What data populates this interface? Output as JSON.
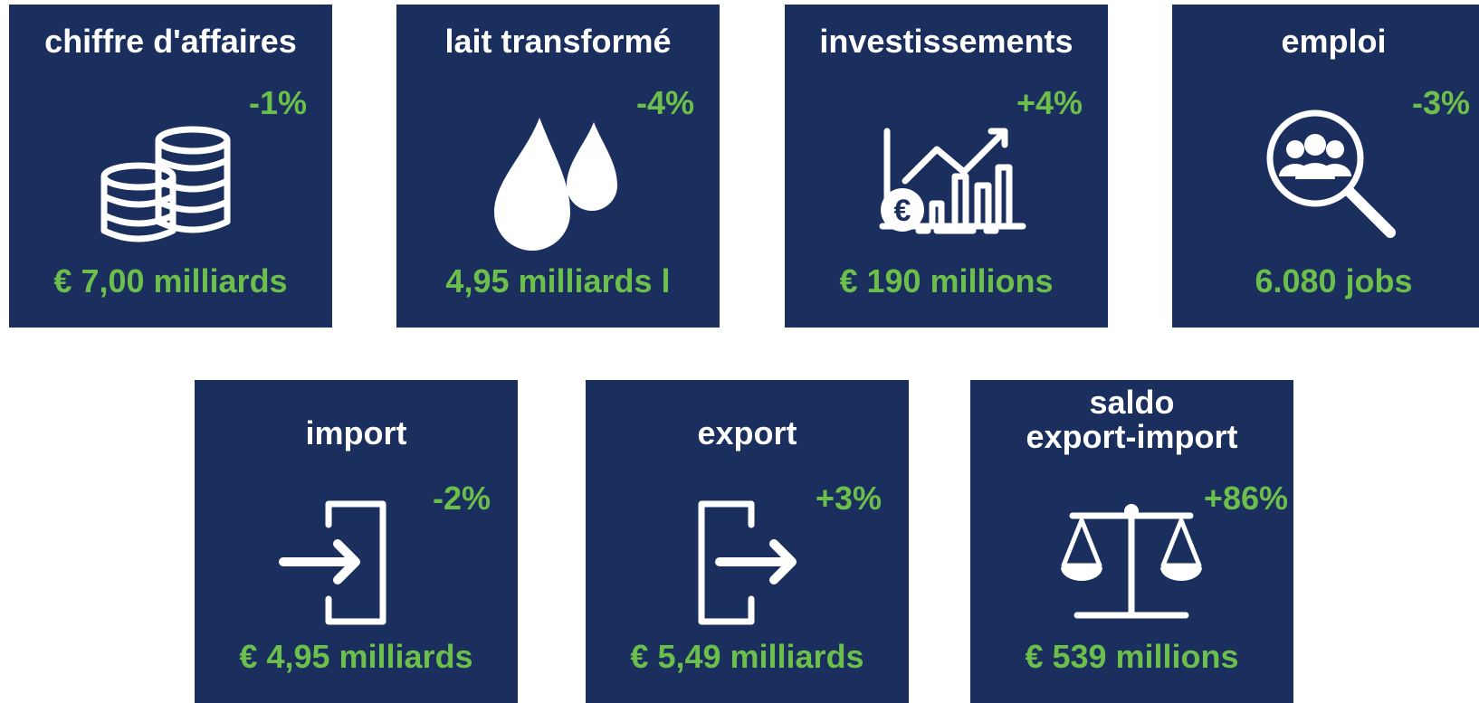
{
  "tiles": [
    {
      "title": "chiffre d'affaires",
      "change": "-1%",
      "value": "€ 7,00 milliards"
    },
    {
      "title": "lait transformé",
      "change": "-4%",
      "value": "4,95 milliards l"
    },
    {
      "title": "investissements",
      "change": "+4%",
      "value": "€ 190 millions"
    },
    {
      "title": "emploi",
      "change": "-3%",
      "value": "6.080 jobs"
    },
    {
      "title": "import",
      "change": "-2%",
      "value": "€ 4,95 milliards"
    },
    {
      "title": "export",
      "change": "+3%",
      "value": "€ 5,49 milliards"
    },
    {
      "title": "saldo\nexport-import",
      "change": "+86%",
      "value": "€ 539 millions"
    }
  ]
}
